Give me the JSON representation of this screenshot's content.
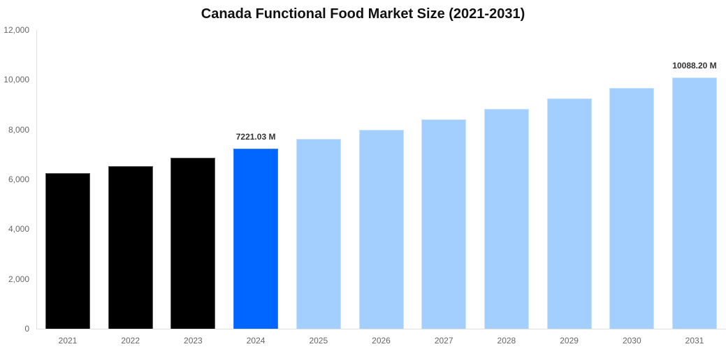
{
  "chart_data": {
    "type": "bar",
    "title": "Canada Functional Food Market Size (2021-2031)",
    "xlabel": "",
    "ylabel": "",
    "ylim": [
      0,
      12000
    ],
    "yticks": [
      "0",
      "2,000",
      "4,000",
      "6,000",
      "8,000",
      "10,000",
      "12,000"
    ],
    "categories": [
      "2021",
      "2022",
      "2023",
      "2024",
      "2025",
      "2026",
      "2027",
      "2028",
      "2029",
      "2030",
      "2031"
    ],
    "values": [
      6265,
      6546,
      6856,
      7221.03,
      7615,
      7980,
      8402,
      8823,
      9245,
      9667,
      10088.2
    ],
    "bar_types": [
      "historical",
      "historical",
      "historical",
      "current",
      "forecast",
      "forecast",
      "forecast",
      "forecast",
      "forecast",
      "forecast",
      "forecast"
    ],
    "annotations": [
      {
        "category": "2024",
        "text": "7221.03 M"
      },
      {
        "category": "2031",
        "text": "10088.20 M"
      }
    ],
    "colors": {
      "historical": "#000000",
      "current": "#0066ff",
      "forecast": "#a2cffd"
    },
    "grid": false,
    "legend": "none"
  }
}
